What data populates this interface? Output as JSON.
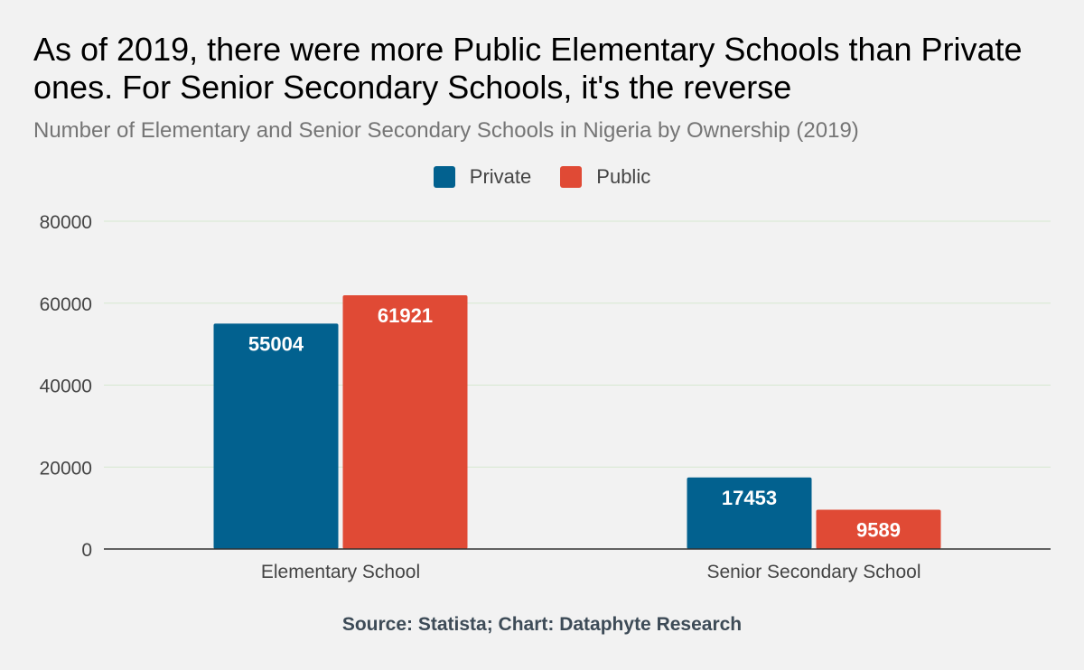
{
  "colors": {
    "private": "#02618f",
    "public": "#e04a35",
    "grid": "#d6e8d0",
    "axis": "#333333"
  },
  "chart_data": {
    "type": "bar",
    "title": "As of 2019, there were more Public Elementary Schools than Private ones. For Senior Secondary Schools, it's the reverse",
    "subtitle": "Number of Elementary and Senior Secondary Schools in Nigeria by Ownership (2019)",
    "categories": [
      "Elementary School",
      "Senior Secondary School"
    ],
    "series": [
      {
        "name": "Private",
        "values": [
          55004,
          17453
        ]
      },
      {
        "name": "Public",
        "values": [
          61921,
          9589
        ]
      }
    ],
    "ylim": [
      0,
      80000
    ],
    "yticks": [
      0,
      20000,
      40000,
      60000,
      80000
    ],
    "grid": true,
    "legend_position": "top-center",
    "source": "Source: Statista; Chart: Dataphyte Research"
  }
}
